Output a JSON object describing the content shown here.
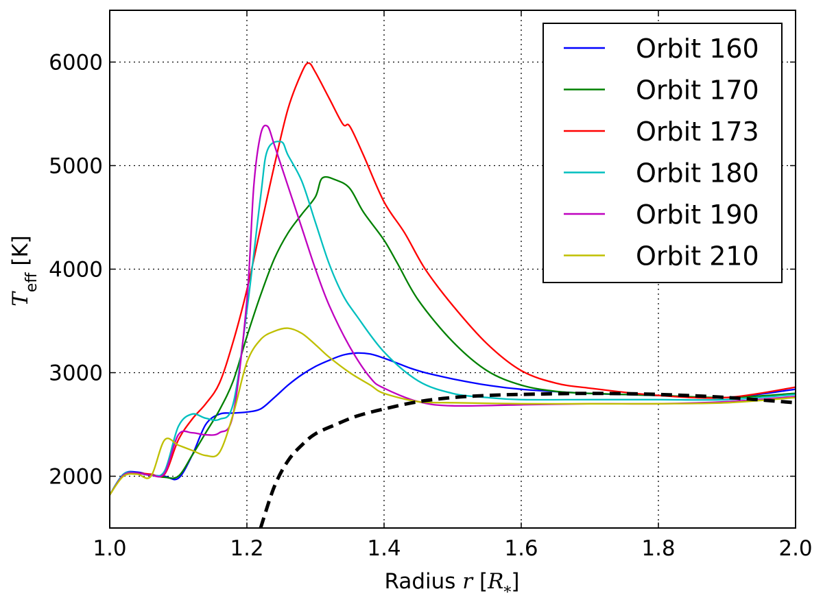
{
  "chart_data": {
    "type": "line",
    "title": "",
    "xlabel": {
      "text": "Radius ",
      "var": "r",
      "unit_open": " [",
      "unit": "R",
      "unit_sub": "*",
      "unit_close": "]"
    },
    "ylabel": {
      "var": "T",
      "sub": "eff",
      "unit": " [K]"
    },
    "xlim": [
      1.0,
      2.0
    ],
    "ylim": [
      1500,
      6500
    ],
    "xticks": [
      1.0,
      1.2,
      1.4,
      1.6,
      1.8,
      2.0
    ],
    "xtick_labels": [
      "1.0",
      "1.2",
      "1.4",
      "1.6",
      "1.8",
      "2.0"
    ],
    "yticks": [
      2000,
      3000,
      4000,
      5000,
      6000
    ],
    "ytick_labels": [
      "2000",
      "3000",
      "4000",
      "5000",
      "6000"
    ],
    "grid": true,
    "grid_style": "dotted",
    "legend_position": "upper-right",
    "series": [
      {
        "name": "Orbit 160",
        "color": "#0000ff",
        "x": [
          1.0,
          1.02,
          1.04,
          1.06,
          1.08,
          1.1,
          1.12,
          1.14,
          1.16,
          1.18,
          1.2,
          1.22,
          1.24,
          1.26,
          1.28,
          1.3,
          1.32,
          1.34,
          1.36,
          1.38,
          1.4,
          1.42,
          1.44,
          1.46,
          1.5,
          1.55,
          1.6,
          1.7,
          1.8,
          1.9,
          2.0
        ],
        "y": [
          1820,
          2020,
          2040,
          2010,
          2000,
          1980,
          2200,
          2500,
          2600,
          2610,
          2620,
          2650,
          2760,
          2880,
          2980,
          3060,
          3120,
          3170,
          3190,
          3180,
          3140,
          3090,
          3040,
          3000,
          2940,
          2880,
          2840,
          2800,
          2780,
          2760,
          2840
        ]
      },
      {
        "name": "Orbit 170",
        "color": "#008000",
        "x": [
          1.0,
          1.02,
          1.04,
          1.06,
          1.08,
          1.1,
          1.12,
          1.14,
          1.16,
          1.18,
          1.2,
          1.22,
          1.24,
          1.26,
          1.28,
          1.3,
          1.31,
          1.33,
          1.35,
          1.37,
          1.4,
          1.42,
          1.45,
          1.5,
          1.55,
          1.6,
          1.65,
          1.7,
          1.8,
          1.9,
          2.0
        ],
        "y": [
          1820,
          2010,
          2030,
          2010,
          1990,
          2000,
          2200,
          2420,
          2640,
          2920,
          3350,
          3750,
          4100,
          4350,
          4530,
          4700,
          4880,
          4860,
          4780,
          4550,
          4280,
          4050,
          3700,
          3300,
          3020,
          2880,
          2820,
          2800,
          2780,
          2760,
          2800
        ]
      },
      {
        "name": "Orbit 173",
        "color": "#ff0000",
        "x": [
          1.0,
          1.02,
          1.04,
          1.06,
          1.08,
          1.1,
          1.12,
          1.14,
          1.16,
          1.18,
          1.2,
          1.22,
          1.24,
          1.26,
          1.28,
          1.29,
          1.3,
          1.32,
          1.34,
          1.35,
          1.37,
          1.4,
          1.43,
          1.46,
          1.5,
          1.55,
          1.6,
          1.65,
          1.7,
          1.8,
          1.9,
          2.0
        ],
        "y": [
          1820,
          2010,
          2030,
          2020,
          2020,
          2350,
          2550,
          2700,
          2900,
          3300,
          3800,
          4400,
          5000,
          5550,
          5900,
          5990,
          5900,
          5650,
          5400,
          5380,
          5100,
          4650,
          4350,
          4000,
          3650,
          3280,
          3020,
          2900,
          2850,
          2780,
          2760,
          2860
        ]
      },
      {
        "name": "Orbit 180",
        "color": "#00bfbf",
        "x": [
          1.0,
          1.02,
          1.04,
          1.06,
          1.08,
          1.1,
          1.12,
          1.14,
          1.16,
          1.18,
          1.2,
          1.22,
          1.23,
          1.25,
          1.26,
          1.28,
          1.3,
          1.32,
          1.34,
          1.36,
          1.4,
          1.45,
          1.5,
          1.55,
          1.6,
          1.7,
          1.8,
          1.9,
          2.0
        ],
        "y": [
          1820,
          2020,
          2030,
          2010,
          2050,
          2480,
          2600,
          2560,
          2550,
          2700,
          3600,
          4700,
          5150,
          5230,
          5100,
          4850,
          4450,
          4050,
          3750,
          3550,
          3200,
          2920,
          2800,
          2760,
          2740,
          2740,
          2740,
          2740,
          2790
        ]
      },
      {
        "name": "Orbit 190",
        "color": "#bf00bf",
        "x": [
          1.0,
          1.02,
          1.04,
          1.06,
          1.08,
          1.1,
          1.12,
          1.14,
          1.16,
          1.18,
          1.2,
          1.21,
          1.22,
          1.23,
          1.24,
          1.26,
          1.28,
          1.3,
          1.32,
          1.35,
          1.38,
          1.4,
          1.45,
          1.5,
          1.6,
          1.7,
          1.8,
          1.9,
          2.0
        ],
        "y": [
          1820,
          2010,
          2030,
          2010,
          2030,
          2400,
          2420,
          2400,
          2420,
          2600,
          3700,
          4800,
          5300,
          5380,
          5200,
          4800,
          4400,
          4000,
          3650,
          3250,
          2950,
          2850,
          2720,
          2680,
          2690,
          2700,
          2700,
          2720,
          2770
        ]
      },
      {
        "name": "Orbit 210",
        "color": "#bfbf00",
        "x": [
          1.0,
          1.02,
          1.04,
          1.06,
          1.08,
          1.1,
          1.12,
          1.14,
          1.16,
          1.18,
          1.2,
          1.22,
          1.24,
          1.26,
          1.28,
          1.3,
          1.32,
          1.35,
          1.38,
          1.4,
          1.45,
          1.5,
          1.6,
          1.7,
          1.8,
          1.9,
          2.0
        ],
        "y": [
          1820,
          2000,
          2020,
          2000,
          2350,
          2300,
          2250,
          2200,
          2230,
          2600,
          3100,
          3320,
          3400,
          3430,
          3380,
          3270,
          3150,
          3000,
          2880,
          2800,
          2720,
          2710,
          2700,
          2700,
          2700,
          2710,
          2760
        ]
      },
      {
        "name": "",
        "color": "#000000",
        "dashed": true,
        "x": [
          1.22,
          1.24,
          1.26,
          1.28,
          1.3,
          1.33,
          1.36,
          1.4,
          1.45,
          1.5,
          1.55,
          1.6,
          1.7,
          1.8,
          1.9,
          2.0
        ],
        "y": [
          1500,
          1900,
          2150,
          2300,
          2410,
          2500,
          2580,
          2650,
          2720,
          2760,
          2780,
          2790,
          2800,
          2790,
          2760,
          2710
        ]
      }
    ]
  }
}
